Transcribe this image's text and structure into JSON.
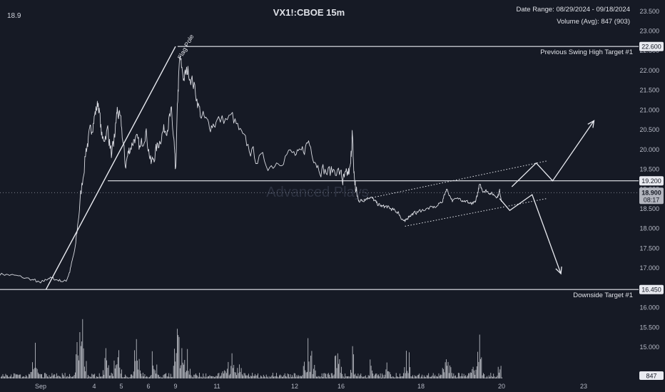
{
  "header": {
    "title": "VX1!:CBOE 15m",
    "last_price": "18.9",
    "date_range": "Date Range: 08/29/2024 - 09/18/2024",
    "volume_avg": "Volume (Avg): 847 (903)"
  },
  "watermark": "Advanced Plays",
  "colors": {
    "background": "#161a25",
    "price_line": "#d9dbe2",
    "volume_bars": "#d9dbe2",
    "level_lines": "#e8eaf0",
    "axis_text": "#b6bac6",
    "tag_bg": "#e8eaf0",
    "tag_text": "#161a25",
    "current_tag_bg": "#b2b5be"
  },
  "chart_data": {
    "type": "line",
    "title": "VX1!:CBOE 15m",
    "ylim": [
      14.55,
      23.55
    ],
    "y_ticks": [
      "23.500",
      "23.000",
      "22.500",
      "22.000",
      "21.500",
      "21.000",
      "20.500",
      "20.000",
      "19.500",
      "19.000",
      "18.500",
      "18.000",
      "17.500",
      "17.000",
      "16.500",
      "16.000",
      "15.500",
      "15.000"
    ],
    "x_ticks": [
      "Sep",
      "4",
      "5",
      "6",
      "9",
      "11",
      "12",
      "16",
      "18",
      "20",
      "23"
    ],
    "price_anchors": [
      {
        "t": 0.0,
        "p": 16.85
      },
      {
        "t": 0.35,
        "p": 16.8
      },
      {
        "t": 0.8,
        "p": 16.7
      },
      {
        "t": 1.0,
        "p": 16.6
      },
      {
        "t": 1.3,
        "p": 16.75
      },
      {
        "t": 1.6,
        "p": 16.7
      },
      {
        "t": 1.95,
        "p": 16.65
      },
      {
        "t": 2.1,
        "p": 16.9
      },
      {
        "t": 2.3,
        "p": 17.5
      },
      {
        "t": 2.5,
        "p": 18.8
      },
      {
        "t": 2.7,
        "p": 20.0
      },
      {
        "t": 2.85,
        "p": 20.4
      },
      {
        "t": 3.0,
        "p": 20.8
      },
      {
        "t": 3.15,
        "p": 21.2
      },
      {
        "t": 3.3,
        "p": 20.2
      },
      {
        "t": 3.5,
        "p": 20.5
      },
      {
        "t": 3.65,
        "p": 19.8
      },
      {
        "t": 3.75,
        "p": 20.3
      },
      {
        "t": 3.85,
        "p": 21.0
      },
      {
        "t": 4.0,
        "p": 20.6
      },
      {
        "t": 4.15,
        "p": 19.6
      },
      {
        "t": 4.3,
        "p": 20.0
      },
      {
        "t": 4.5,
        "p": 20.3
      },
      {
        "t": 4.7,
        "p": 20.0
      },
      {
        "t": 4.9,
        "p": 20.5
      },
      {
        "t": 5.1,
        "p": 19.6
      },
      {
        "t": 5.3,
        "p": 20.0
      },
      {
        "t": 5.5,
        "p": 20.4
      },
      {
        "t": 5.7,
        "p": 20.6
      },
      {
        "t": 5.85,
        "p": 20.9
      },
      {
        "t": 5.95,
        "p": 20.1
      },
      {
        "t": 6.0,
        "p": 19.3
      },
      {
        "t": 6.05,
        "p": 21.2
      },
      {
        "t": 6.1,
        "p": 22.3
      },
      {
        "t": 6.2,
        "p": 21.8
      },
      {
        "t": 6.3,
        "p": 22.0
      },
      {
        "t": 6.45,
        "p": 21.6
      },
      {
        "t": 6.6,
        "p": 20.9
      },
      {
        "t": 6.8,
        "p": 20.6
      },
      {
        "t": 7.0,
        "p": 20.7
      },
      {
        "t": 7.2,
        "p": 20.8
      },
      {
        "t": 7.35,
        "p": 20.2
      },
      {
        "t": 7.5,
        "p": 19.8
      },
      {
        "t": 7.7,
        "p": 19.6
      },
      {
        "t": 7.9,
        "p": 19.9
      },
      {
        "t": 8.1,
        "p": 19.8
      },
      {
        "t": 8.3,
        "p": 20.2
      },
      {
        "t": 8.5,
        "p": 19.6
      },
      {
        "t": 8.7,
        "p": 19.4
      },
      {
        "t": 8.9,
        "p": 19.5
      },
      {
        "t": 9.1,
        "p": 19.2
      },
      {
        "t": 9.3,
        "p": 19.3
      },
      {
        "t": 9.55,
        "p": 19.5
      },
      {
        "t": 9.65,
        "p": 20.4
      },
      {
        "t": 9.75,
        "p": 19.4
      },
      {
        "t": 9.85,
        "p": 19.0
      },
      {
        "t": 10.0,
        "p": 18.7
      },
      {
        "t": 10.2,
        "p": 18.7
      },
      {
        "t": 10.4,
        "p": 18.75
      },
      {
        "t": 10.6,
        "p": 18.8
      },
      {
        "t": 10.8,
        "p": 18.7
      },
      {
        "t": 11.0,
        "p": 18.6
      },
      {
        "t": 11.2,
        "p": 18.55
      },
      {
        "t": 11.4,
        "p": 18.55
      },
      {
        "t": 11.6,
        "p": 18.5
      },
      {
        "t": 11.8,
        "p": 18.45
      },
      {
        "t": 12.0,
        "p": 18.4
      },
      {
        "t": 12.15,
        "p": 18.25
      },
      {
        "t": 12.3,
        "p": 18.15
      },
      {
        "t": 12.45,
        "p": 18.3
      },
      {
        "t": 12.6,
        "p": 18.35
      },
      {
        "t": 12.8,
        "p": 18.4
      },
      {
        "t": 13.0,
        "p": 18.45
      },
      {
        "t": 13.2,
        "p": 18.5
      },
      {
        "t": 13.4,
        "p": 18.55
      },
      {
        "t": 13.55,
        "p": 18.7
      },
      {
        "t": 13.65,
        "p": 19.0
      },
      {
        "t": 13.8,
        "p": 18.7
      },
      {
        "t": 14.0,
        "p": 18.75
      },
      {
        "t": 14.2,
        "p": 18.7
      },
      {
        "t": 14.4,
        "p": 18.65
      },
      {
        "t": 14.55,
        "p": 18.6
      },
      {
        "t": 14.7,
        "p": 18.65
      },
      {
        "t": 14.8,
        "p": 18.85
      },
      {
        "t": 14.9,
        "p": 19.1
      },
      {
        "t": 15.05,
        "p": 18.95
      },
      {
        "t": 15.2,
        "p": 18.95
      },
      {
        "t": 15.4,
        "p": 18.9
      },
      {
        "t": 15.6,
        "p": 18.85
      },
      {
        "t": 15.8,
        "p": 18.8
      },
      {
        "t": 15.9,
        "p": 18.95
      },
      {
        "t": 16.0,
        "p": 18.7
      }
    ],
    "volume_peaks": [
      {
        "t": 0.85,
        "v": 0.4
      },
      {
        "t": 2.4,
        "v": 0.55
      },
      {
        "t": 2.55,
        "v": 1.0
      },
      {
        "t": 3.45,
        "v": 0.45
      },
      {
        "t": 3.85,
        "v": 0.55
      },
      {
        "t": 4.55,
        "v": 0.45
      },
      {
        "t": 5.2,
        "v": 0.55
      },
      {
        "t": 6.05,
        "v": 0.65
      },
      {
        "t": 6.2,
        "v": 0.55
      },
      {
        "t": 7.2,
        "v": 0.3
      },
      {
        "t": 8.3,
        "v": 0.45
      },
      {
        "t": 8.9,
        "v": 0.3
      },
      {
        "t": 9.65,
        "v": 0.45
      },
      {
        "t": 10.6,
        "v": 0.2
      },
      {
        "t": 11.5,
        "v": 0.3
      },
      {
        "t": 12.4,
        "v": 0.45
      },
      {
        "t": 13.65,
        "v": 0.3
      },
      {
        "t": 14.6,
        "v": 0.35
      },
      {
        "t": 14.9,
        "v": 0.6
      },
      {
        "t": 15.85,
        "v": 0.3
      }
    ],
    "levels": [
      {
        "price": 22.6,
        "tag": "22.600",
        "label": "Previous Swing High Target #1",
        "x_start": 6.05
      },
      {
        "price": 19.2,
        "tag": "19.200",
        "label": "",
        "x_start": 3.5
      },
      {
        "price": 16.45,
        "tag": "16.450",
        "label": "Downside Target #1",
        "x_start": 0.0
      }
    ],
    "current_price": {
      "tag": "18.900",
      "countdown": "08:17",
      "price": 18.9
    },
    "volume_tag": "847",
    "flag_pole": {
      "label": "Flag Pole",
      "start": {
        "t": 1.2,
        "p": 16.45
      },
      "end": {
        "t": 6.0,
        "p": 22.6
      }
    },
    "channel": {
      "upper": [
        {
          "t": 10.0,
          "p": 18.7
        },
        {
          "t": 17.1,
          "p": 19.7
        }
      ],
      "lower": [
        {
          "t": 12.3,
          "p": 18.05
        },
        {
          "t": 17.1,
          "p": 18.75
        }
      ]
    },
    "bull_path": [
      {
        "t": 16.25,
        "p": 19.05
      },
      {
        "t": 16.85,
        "p": 19.65
      },
      {
        "t": 17.25,
        "p": 19.2
      },
      {
        "t": 18.25,
        "p": 20.72
      }
    ],
    "bear_path": [
      {
        "t": 15.9,
        "p": 18.75
      },
      {
        "t": 16.2,
        "p": 18.45
      },
      {
        "t": 16.75,
        "p": 18.85
      },
      {
        "t": 17.45,
        "p": 16.85
      }
    ]
  }
}
